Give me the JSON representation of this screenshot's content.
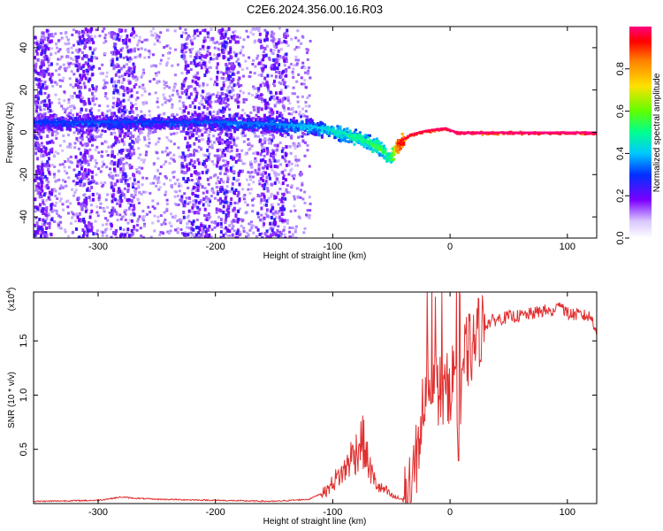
{
  "title": "C2E6.2024.356.00.16.R03",
  "chart_data": [
    {
      "type": "heatmap",
      "title": "C2E6.2024.356.00.16.R03",
      "xlabel": "Height of straight line (km)",
      "ylabel": "Frequency (Hz)",
      "xlim": [
        -355,
        125
      ],
      "ylim": [
        -50,
        50
      ],
      "x_ticks": [
        -300,
        -200,
        -100,
        0,
        100
      ],
      "y_ticks": [
        -40,
        -20,
        0,
        20,
        40
      ],
      "colorbar": {
        "label": "Normalized spectral amplitude",
        "range": [
          0,
          1
        ],
        "ticks": [
          "0.0",
          "0.2",
          "0.4",
          "0.6",
          "0.8"
        ],
        "tick_values": [
          0.0,
          0.2,
          0.4,
          0.6,
          0.8
        ],
        "colors": [
          "#f0e6ff",
          "#b08cff",
          "#7b00ff",
          "#0030ff",
          "#00c8ff",
          "#00ff90",
          "#60ff00",
          "#ffe000",
          "#ff8000",
          "#ff0000",
          "#ff0080"
        ]
      },
      "ridge": {
        "x": [
          -340,
          -300,
          -250,
          -200,
          -150,
          -120,
          -100,
          -80,
          -60,
          -52,
          -45,
          -35,
          -20,
          -5,
          5,
          125
        ],
        "frequency": [
          5,
          5,
          5,
          5,
          4,
          3,
          1,
          -2,
          -7,
          -12,
          -5,
          -1,
          1,
          2,
          0,
          0
        ],
        "amplitude": [
          0.3,
          0.32,
          0.3,
          0.33,
          0.35,
          0.4,
          0.45,
          0.5,
          0.55,
          0.5,
          0.9,
          0.95,
          0.97,
          0.98,
          0.99,
          1.0
        ]
      }
    },
    {
      "type": "line",
      "xlabel": "Height of straight line (km)",
      "ylabel": "SNR (10 * v/v)",
      "y_multiplier": "(x10",
      "y_multiplier_exp": "4",
      "y_multiplier_close": ")",
      "xlim": [
        -355,
        125
      ],
      "ylim": [
        0,
        1.95
      ],
      "x_ticks": [
        -300,
        -200,
        -100,
        0,
        100
      ],
      "y_ticks": [
        "0.5",
        "1.0",
        "1.5"
      ],
      "y_tick_values": [
        0.5,
        1.0,
        1.5
      ],
      "series": [
        {
          "name": "SNR",
          "color": "#e03030",
          "x": [
            -355,
            -300,
            -280,
            -270,
            -250,
            -200,
            -150,
            -120,
            -105,
            -98,
            -90,
            -85,
            -80,
            -75,
            -70,
            -65,
            -60,
            -55,
            -50,
            -45,
            -40,
            -35,
            -30,
            -27,
            -25,
            -22,
            -20,
            -15,
            -10,
            -5,
            0,
            5,
            8,
            10,
            15,
            20,
            25,
            30,
            35,
            40,
            50,
            60,
            70,
            80,
            90,
            92,
            100,
            110,
            120,
            125
          ],
          "y": [
            0.02,
            0.03,
            0.06,
            0.05,
            0.04,
            0.03,
            0.02,
            0.04,
            0.12,
            0.22,
            0.3,
            0.42,
            0.48,
            0.6,
            0.38,
            0.22,
            0.14,
            0.12,
            0.07,
            0.05,
            0.04,
            0.06,
            0.3,
            0.55,
            0.7,
            1.0,
            1.25,
            1.15,
            1.05,
            1.0,
            1.1,
            1.25,
            0.35,
            1.3,
            1.4,
            1.45,
            1.6,
            1.65,
            1.68,
            1.7,
            1.72,
            1.73,
            1.75,
            1.78,
            1.76,
            1.88,
            1.75,
            1.74,
            1.72,
            1.6
          ]
        }
      ]
    }
  ]
}
